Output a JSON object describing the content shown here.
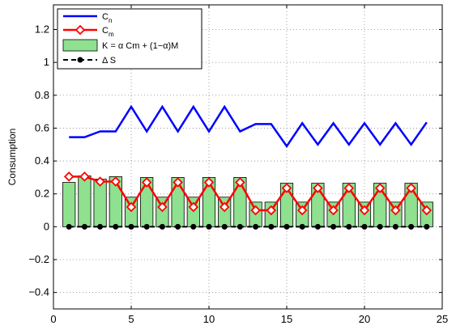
{
  "chart_data": {
    "type": "bar",
    "xlabel": "",
    "ylabel": "Consumption",
    "title": "",
    "xlim": [
      0,
      25
    ],
    "ylim": [
      -0.5,
      1.35
    ],
    "xticks": [
      0,
      5,
      10,
      15,
      20,
      25
    ],
    "yticks": [
      -0.4,
      -0.2,
      0,
      0.2,
      0.4,
      0.6,
      0.8,
      1,
      1.2
    ],
    "xtick_labels": [
      "0",
      "5",
      "10",
      "15",
      "20",
      "25"
    ],
    "ytick_labels": [
      "−0.4",
      "−0.2",
      "0",
      "0.2",
      "0.4",
      "0.6",
      "0.8",
      "1",
      "1.2"
    ],
    "grid": true,
    "legend_position": "top-left",
    "x": [
      1,
      2,
      3,
      4,
      5,
      6,
      7,
      8,
      9,
      10,
      11,
      12,
      13,
      14,
      15,
      16,
      17,
      18,
      19,
      20,
      21,
      22,
      23,
      24
    ],
    "series": [
      {
        "name": "C_n",
        "legend_main": "C",
        "legend_sub": "n",
        "kind": "line",
        "color": "#0000ff",
        "values": [
          0.545,
          0.545,
          0.58,
          0.58,
          0.73,
          0.58,
          0.73,
          0.58,
          0.73,
          0.58,
          0.73,
          0.58,
          0.625,
          0.625,
          0.49,
          0.63,
          0.5,
          0.63,
          0.5,
          0.63,
          0.5,
          0.63,
          0.5,
          0.635
        ]
      },
      {
        "name": "C_m",
        "legend_main": "C",
        "legend_sub": "m",
        "kind": "line-diamond",
        "color": "#ff0000",
        "values": [
          0.305,
          0.305,
          0.275,
          0.275,
          0.12,
          0.27,
          0.12,
          0.27,
          0.12,
          0.27,
          0.12,
          0.27,
          0.1,
          0.1,
          0.235,
          0.1,
          0.235,
          0.1,
          0.235,
          0.1,
          0.235,
          0.1,
          0.235,
          0.1
        ]
      },
      {
        "name": "K = α Cm + (1−α)M",
        "legend_main": "K = α Cm + (1−α)M",
        "legend_sub": "",
        "kind": "bar",
        "color": "#8fe08f",
        "values": [
          0.27,
          0.31,
          0.29,
          0.305,
          0.18,
          0.3,
          0.18,
          0.3,
          0.18,
          0.3,
          0.18,
          0.3,
          0.15,
          0.15,
          0.265,
          0.15,
          0.265,
          0.15,
          0.265,
          0.15,
          0.265,
          0.15,
          0.265,
          0.15
        ]
      },
      {
        "name": "Δ S",
        "legend_main": "Δ S",
        "legend_sub": "",
        "kind": "dashed-dot",
        "color": "#000000",
        "values": [
          0,
          0,
          0,
          0,
          0,
          0,
          0,
          0,
          0,
          0,
          0,
          0,
          0,
          0,
          0,
          0,
          0,
          0,
          0,
          0,
          0,
          0,
          0,
          0
        ]
      }
    ]
  }
}
